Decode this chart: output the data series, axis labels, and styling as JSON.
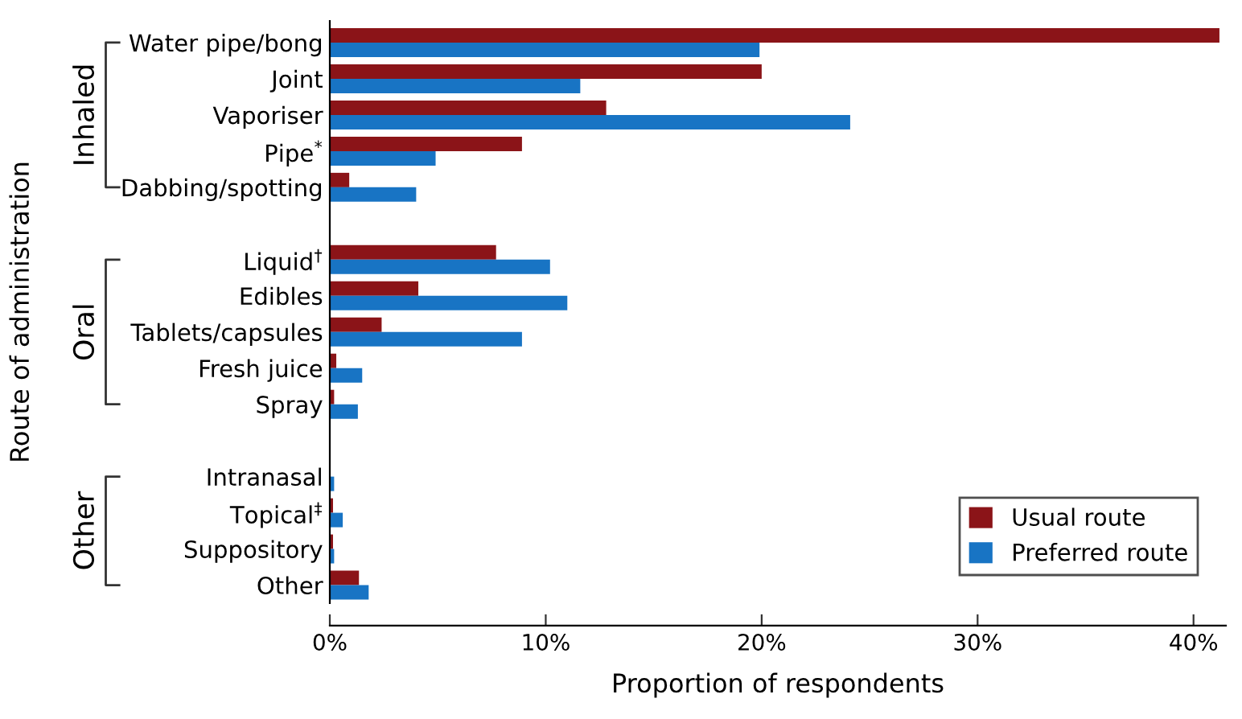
{
  "chart_data": {
    "type": "bar",
    "orientation": "horizontal",
    "xlabel": "Proportion of respondents",
    "ylabel": "Route of administration",
    "categories": [
      "Water pipe/bong",
      "Joint",
      "Vaporiser",
      "Pipe$^{*}$",
      "Dabbing/spotting",
      null,
      "Liquid$^{†}$",
      "Edibles",
      "Tablets/capsules",
      "Fresh juice",
      "Spray",
      null,
      "Intranasal",
      "Topical$^{‡}$",
      "Suppository",
      "Other"
    ],
    "series": [
      {
        "name": "Usual route",
        "color": "#8b1418",
        "values": [
          41.2,
          20.0,
          12.8,
          8.9,
          0.9,
          null,
          7.7,
          4.1,
          2.4,
          0.3,
          0.2,
          null,
          0,
          0.15,
          0.15,
          1.35
        ]
      },
      {
        "name": "Preferred route",
        "color": "#1874c4",
        "values": [
          19.9,
          11.6,
          24.1,
          4.9,
          4.0,
          null,
          10.2,
          11.0,
          8.9,
          1.5,
          1.3,
          null,
          0.2,
          0.6,
          0.2,
          1.8
        ]
      }
    ],
    "annotations": [
      "Inhaled",
      "Oral",
      "Other"
    ],
    "xlim": [
      0,
      41.5
    ],
    "xticks": [
      {
        "value": 0,
        "label": "0%"
      },
      {
        "value": 10,
        "label": "10%"
      },
      {
        "value": 20,
        "label": "20%"
      },
      {
        "value": 30,
        "label": "30%"
      },
      {
        "value": 40,
        "label": "40%"
      }
    ],
    "grid": false,
    "legend": "bottom right"
  }
}
